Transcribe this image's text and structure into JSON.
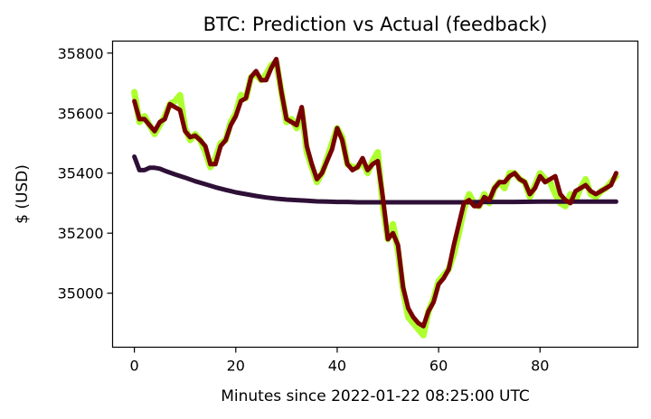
{
  "chart_data": {
    "type": "line",
    "title": "BTC: Prediction vs Actual (feedback)",
    "xlabel": "Minutes since 2022-01-22 08:25:00 UTC",
    "ylabel": "$ (USD)",
    "xlim": [
      -4.3,
      99.3
    ],
    "ylim": [
      34820,
      35840
    ],
    "xticks": [
      0,
      20,
      40,
      60,
      80
    ],
    "yticks": [
      35000,
      35200,
      35400,
      35600,
      35800
    ],
    "legend": "none",
    "grid": false,
    "series": [
      {
        "color": "#adff2f",
        "width": 7,
        "x": [
          0,
          1,
          2,
          3,
          4,
          5,
          6,
          7,
          8,
          9,
          10,
          11,
          12,
          13,
          14,
          15,
          16,
          17,
          18,
          19,
          20,
          21,
          22,
          23,
          24,
          25,
          26,
          27,
          28,
          29,
          30,
          31,
          32,
          33,
          34,
          35,
          36,
          37,
          38,
          39,
          40,
          41,
          42,
          43,
          44,
          45,
          46,
          47,
          48,
          49,
          50,
          51,
          52,
          53,
          54,
          55,
          56,
          57,
          58,
          59,
          60,
          61,
          62,
          63,
          64,
          65,
          66,
          67,
          68,
          69,
          70,
          71,
          72,
          73,
          74,
          75,
          76,
          77,
          78,
          79,
          80,
          81,
          82,
          83,
          84,
          85,
          86,
          87,
          88,
          89,
          90,
          91,
          92,
          93,
          94,
          95
        ],
        "y": [
          35670,
          35570,
          35590,
          35560,
          35530,
          35560,
          35590,
          35630,
          35640,
          35660,
          35550,
          35510,
          35530,
          35510,
          35470,
          35420,
          35450,
          35500,
          35510,
          35570,
          35600,
          35660,
          35650,
          35720,
          35730,
          35710,
          35730,
          35760,
          35770,
          35670,
          35570,
          35580,
          35550,
          35610,
          35470,
          35420,
          35370,
          35400,
          35450,
          35500,
          35550,
          35520,
          35430,
          35420,
          35420,
          35440,
          35400,
          35440,
          35470,
          35290,
          35180,
          35230,
          35140,
          35010,
          34920,
          34900,
          34880,
          34860,
          34940,
          34980,
          35040,
          35060,
          35080,
          35130,
          35200,
          35280,
          35330,
          35300,
          35290,
          35330,
          35300,
          35350,
          35370,
          35350,
          35400,
          35400,
          35380,
          35370,
          35320,
          35360,
          35400,
          35380,
          35370,
          35330,
          35300,
          35290,
          35330,
          35310,
          35350,
          35380,
          35330,
          35320,
          35340,
          35350,
          35370,
          35390
        ]
      },
      {
        "color": "#2e1037",
        "width": 5,
        "x": [
          0,
          1,
          2,
          3,
          4,
          5,
          6,
          8,
          10,
          12,
          14,
          16,
          18,
          20,
          22,
          24,
          26,
          28,
          30,
          32,
          34,
          36,
          38,
          40,
          42,
          44,
          46,
          48,
          50,
          55,
          60,
          65,
          70,
          75,
          80,
          85,
          90,
          95
        ],
        "y": [
          35455,
          35410,
          35410,
          35418,
          35418,
          35415,
          35408,
          35396,
          35385,
          35373,
          35363,
          35353,
          35344,
          35336,
          35330,
          35324,
          35319,
          35315,
          35312,
          35310,
          35308,
          35306,
          35305,
          35304,
          35304,
          35303,
          35303,
          35303,
          35303,
          35303,
          35303,
          35303,
          35304,
          35304,
          35305,
          35305,
          35305,
          35305
        ]
      },
      {
        "color": "#770000",
        "width": 5,
        "x": [
          0,
          1,
          2,
          3,
          4,
          5,
          6,
          7,
          8,
          9,
          10,
          11,
          12,
          13,
          14,
          15,
          16,
          17,
          18,
          19,
          20,
          21,
          22,
          23,
          24,
          25,
          26,
          27,
          28,
          29,
          30,
          31,
          32,
          33,
          34,
          35,
          36,
          37,
          38,
          39,
          40,
          41,
          42,
          43,
          44,
          45,
          46,
          47,
          48,
          49,
          50,
          51,
          52,
          53,
          54,
          55,
          56,
          57,
          58,
          59,
          60,
          61,
          62,
          63,
          64,
          65,
          66,
          67,
          68,
          69,
          70,
          71,
          72,
          73,
          74,
          75,
          76,
          77,
          78,
          79,
          80,
          81,
          82,
          83,
          84,
          85,
          86,
          87,
          88,
          89,
          90,
          91,
          92,
          93,
          94,
          95
        ],
        "y": [
          35640,
          35580,
          35580,
          35560,
          35540,
          35570,
          35580,
          35630,
          35620,
          35610,
          35540,
          35520,
          35525,
          35510,
          35490,
          35430,
          35430,
          35490,
          35510,
          35560,
          35590,
          35640,
          35650,
          35720,
          35740,
          35710,
          35710,
          35750,
          35780,
          35670,
          35580,
          35570,
          35560,
          35620,
          35490,
          35430,
          35380,
          35400,
          35440,
          35480,
          35550,
          35510,
          35430,
          35410,
          35420,
          35450,
          35410,
          35430,
          35440,
          35320,
          35180,
          35200,
          35160,
          35020,
          34950,
          34920,
          34900,
          34890,
          34940,
          34970,
          35030,
          35050,
          35080,
          35160,
          35230,
          35300,
          35310,
          35290,
          35290,
          35320,
          35310,
          35350,
          35370,
          35370,
          35390,
          35400,
          35380,
          35370,
          35330,
          35350,
          35390,
          35370,
          35380,
          35390,
          35330,
          35310,
          35300,
          35340,
          35350,
          35360,
          35340,
          35330,
          35340,
          35350,
          35360,
          35400
        ]
      }
    ]
  }
}
